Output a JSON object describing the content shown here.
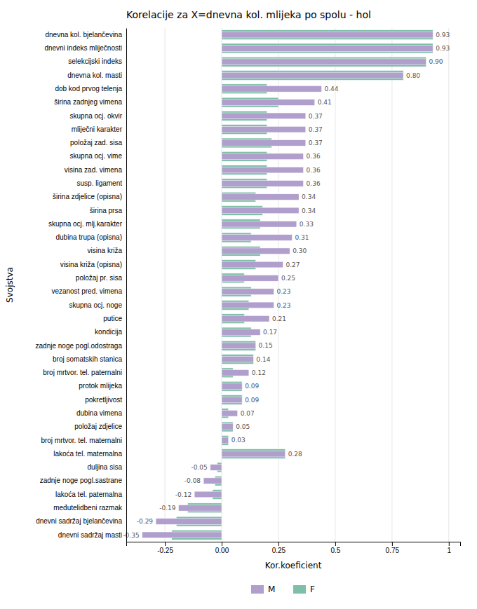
{
  "chart_data": {
    "type": "bar",
    "orientation": "horizontal",
    "title": "Korelacije za X=dnevna kol. mlijeka po spolu - hol",
    "xlabel": "Kor.koeficient",
    "ylabel": "Svojstva",
    "categories": [
      "dnevna kol. bjelančevina",
      "dnevni indeks mliječnosti",
      "selekcijski indeks",
      "dnevna kol. masti",
      "dob kod prvog telenja",
      "širina zadnjeg vimena",
      "skupna ocj. okvir",
      "mliječni karakter",
      "položaj zad. sisa",
      "skupna ocj. vime",
      "visina zad. vimena",
      "susp. ligament",
      "širina zdjelice (opisna)",
      "širina prsa",
      "skupna ocj. mlj.karakter",
      "dubina trupa (opisna)",
      "visina križa",
      "visina križa (opisna)",
      "položaj pr. sisa",
      "vezanost pred. vimena",
      "skupna ocj. noge",
      "putice",
      "kondicija",
      "zadnje noge pogl.odostraga",
      "broj somatskih stanica",
      "broj mrtvor. tel. paternalni",
      "protok mlijeka",
      "pokretljivost",
      "dubina vimena",
      "položaj zdjelice",
      "broj mrtvor. tel. maternalni",
      "lakoća tel. maternalna",
      "duljina sisa",
      "zadnje noge pogl.sastrane",
      "lakoća tel. paternalna",
      "međutelidbeni razmak",
      "dnevni sadržaj bjelančevina",
      "dnevni sadržaj masti"
    ],
    "series": [
      {
        "name": "F",
        "color": "#7fbfaa",
        "values": [
          0.93,
          0.93,
          0.9,
          0.8,
          0.2,
          0.25,
          0.2,
          0.2,
          0.22,
          0.2,
          0.2,
          0.2,
          0.15,
          0.18,
          0.17,
          0.13,
          0.17,
          0.15,
          0.1,
          0.13,
          0.12,
          0.1,
          0.13,
          0.15,
          0.14,
          0.05,
          0.09,
          0.09,
          0.03,
          0.05,
          0.03,
          0.28,
          -0.02,
          -0.03,
          -0.04,
          -0.15,
          -0.2,
          -0.22
        ]
      },
      {
        "name": "M",
        "color": "#b09fcc",
        "values": [
          0.93,
          0.93,
          0.9,
          0.8,
          0.44,
          0.41,
          0.37,
          0.37,
          0.37,
          0.36,
          0.36,
          0.36,
          0.34,
          0.34,
          0.33,
          0.31,
          0.3,
          0.27,
          0.25,
          0.23,
          0.23,
          0.21,
          0.17,
          0.15,
          0.14,
          0.12,
          0.09,
          0.09,
          0.07,
          0.05,
          0.03,
          0.28,
          -0.05,
          -0.08,
          -0.12,
          -0.19,
          -0.29,
          -0.35
        ],
        "value_labels": [
          "0.93",
          "0.93",
          "0.90",
          "0.80",
          "0.44",
          "0.41",
          "0.37",
          "0.37",
          "0.37",
          "0.36",
          "0.36",
          "0.36",
          "0.34",
          "0.34",
          "0.33",
          "0.31",
          "0.30",
          "0.27",
          "0.25",
          "0.23",
          "0.23",
          "0.21",
          "0.17",
          "0.15",
          "0.14",
          "0.12",
          "0.09",
          "0.09",
          "0.07",
          "0.05",
          "0.03",
          "0.28",
          "-0.05",
          "-0.08",
          "-0.12",
          "-0.19",
          "-0.29",
          "-0.35"
        ]
      }
    ],
    "xlim": [
      -0.42,
      1.05
    ],
    "xticks": [
      -0.25,
      {
        "value": 0,
        "label": "0.00"
      },
      0.25,
      0.5,
      0.75,
      1
    ],
    "grid": true,
    "legend": "bottom",
    "data_labels": true
  }
}
